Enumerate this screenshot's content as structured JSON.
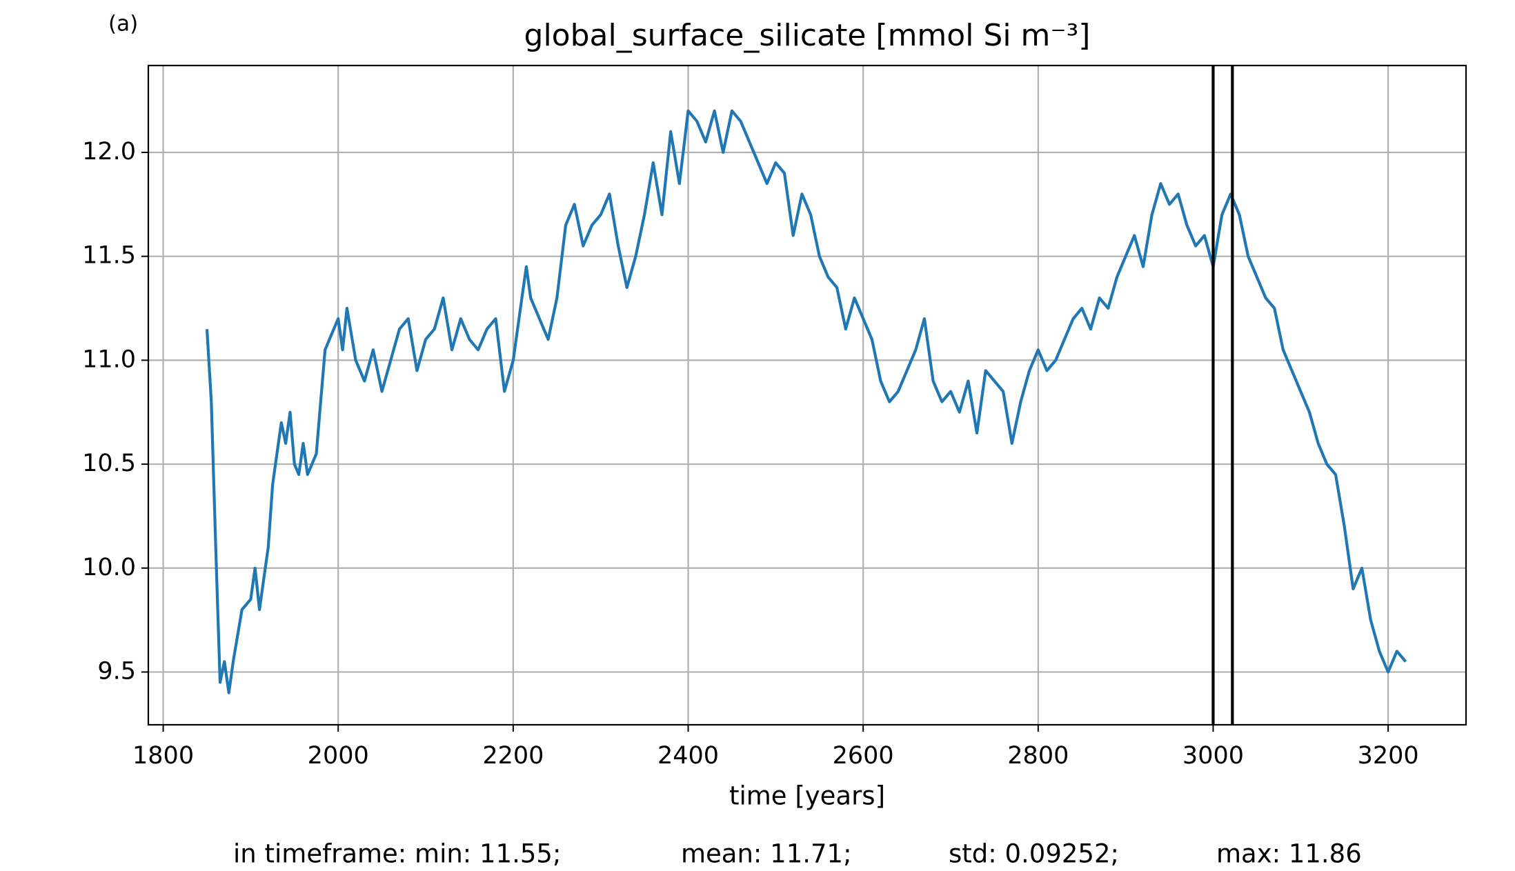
{
  "chart_data": {
    "type": "line",
    "panel_label": "(a)",
    "title": "global_surface_silicate [mmol Si m⁻³]",
    "x_label": "time [years]",
    "footer": [
      "in timeframe: min: 11.55;",
      "mean: 11.71;",
      "std: 0.09252;",
      "max: 11.86"
    ],
    "x": [
      1850,
      1855,
      1860,
      1865,
      1870,
      1875,
      1880,
      1890,
      1900,
      1905,
      1910,
      1915,
      1920,
      1925,
      1930,
      1935,
      1940,
      1945,
      1950,
      1955,
      1960,
      1965,
      1970,
      1975,
      1980,
      1985,
      1990,
      2000,
      2005,
      2010,
      2020,
      2030,
      2040,
      2050,
      2060,
      2070,
      2080,
      2090,
      2100,
      2110,
      2120,
      2130,
      2140,
      2150,
      2160,
      2170,
      2180,
      2190,
      2200,
      2210,
      2215,
      2220,
      2230,
      2240,
      2250,
      2260,
      2270,
      2280,
      2290,
      2300,
      2310,
      2320,
      2330,
      2340,
      2350,
      2360,
      2370,
      2380,
      2390,
      2400,
      2410,
      2420,
      2430,
      2440,
      2450,
      2460,
      2470,
      2480,
      2490,
      2500,
      2510,
      2520,
      2530,
      2540,
      2550,
      2560,
      2570,
      2580,
      2590,
      2600,
      2610,
      2620,
      2630,
      2640,
      2650,
      2660,
      2670,
      2680,
      2690,
      2700,
      2710,
      2720,
      2730,
      2740,
      2750,
      2760,
      2770,
      2780,
      2790,
      2800,
      2810,
      2820,
      2830,
      2840,
      2850,
      2860,
      2870,
      2880,
      2890,
      2900,
      2910,
      2920,
      2930,
      2940,
      2950,
      2960,
      2970,
      2980,
      2990,
      3000,
      3010,
      3020,
      3030,
      3040,
      3050,
      3060,
      3070,
      3080,
      3090,
      3100,
      3110,
      3120,
      3130,
      3140,
      3150,
      3160,
      3170,
      3180,
      3190,
      3200,
      3210,
      3220
    ],
    "series": [
      {
        "color": "#1f77b4",
        "values": [
          11.15,
          10.8,
          10.1,
          9.45,
          9.55,
          9.4,
          9.55,
          9.8,
          9.85,
          10.0,
          9.8,
          9.95,
          10.1,
          10.4,
          10.55,
          10.7,
          10.6,
          10.75,
          10.5,
          10.45,
          10.6,
          10.45,
          10.5,
          10.55,
          10.8,
          11.05,
          11.1,
          11.2,
          11.05,
          11.25,
          11.0,
          10.9,
          11.05,
          10.85,
          11.0,
          11.15,
          11.2,
          10.95,
          11.1,
          11.15,
          11.3,
          11.05,
          11.2,
          11.1,
          11.05,
          11.15,
          11.2,
          10.85,
          11.0,
          11.3,
          11.45,
          11.3,
          11.2,
          11.1,
          11.3,
          11.65,
          11.75,
          11.55,
          11.65,
          11.7,
          11.8,
          11.55,
          11.35,
          11.5,
          11.7,
          11.95,
          11.7,
          12.1,
          11.85,
          12.2,
          12.15,
          12.05,
          12.2,
          12.0,
          12.2,
          12.15,
          12.05,
          11.95,
          11.85,
          11.95,
          11.9,
          11.6,
          11.8,
          11.7,
          11.5,
          11.4,
          11.35,
          11.15,
          11.3,
          11.2,
          11.1,
          10.9,
          10.8,
          10.85,
          10.95,
          11.05,
          11.2,
          10.9,
          10.8,
          10.85,
          10.75,
          10.9,
          10.65,
          10.95,
          10.9,
          10.85,
          10.6,
          10.8,
          10.95,
          11.05,
          10.95,
          11.0,
          11.1,
          11.2,
          11.25,
          11.15,
          11.3,
          11.25,
          11.4,
          11.5,
          11.6,
          11.45,
          11.7,
          11.85,
          11.75,
          11.8,
          11.65,
          11.55,
          11.6,
          11.45,
          11.7,
          11.8,
          11.7,
          11.5,
          11.4,
          11.3,
          11.25,
          11.05,
          10.95,
          10.85,
          10.75,
          10.6,
          10.5,
          10.45,
          10.2,
          9.9,
          10.0,
          9.75,
          9.6,
          9.5,
          9.6,
          9.55
        ]
      }
    ],
    "vlines": [
      3000,
      3022
    ],
    "vline_color": "#000000",
    "xlim": [
      1783,
      3289
    ],
    "ylim": [
      9.246,
      12.418
    ],
    "xticks": [
      1800,
      2000,
      2200,
      2400,
      2600,
      2800,
      3000,
      3200
    ],
    "yticks": [
      9.5,
      {
        "value": 10,
        "label": "10.0"
      },
      10.5,
      {
        "value": 11,
        "label": "11.0"
      },
      11.5,
      {
        "value": 12,
        "label": "12.0"
      }
    ],
    "grid": true
  }
}
